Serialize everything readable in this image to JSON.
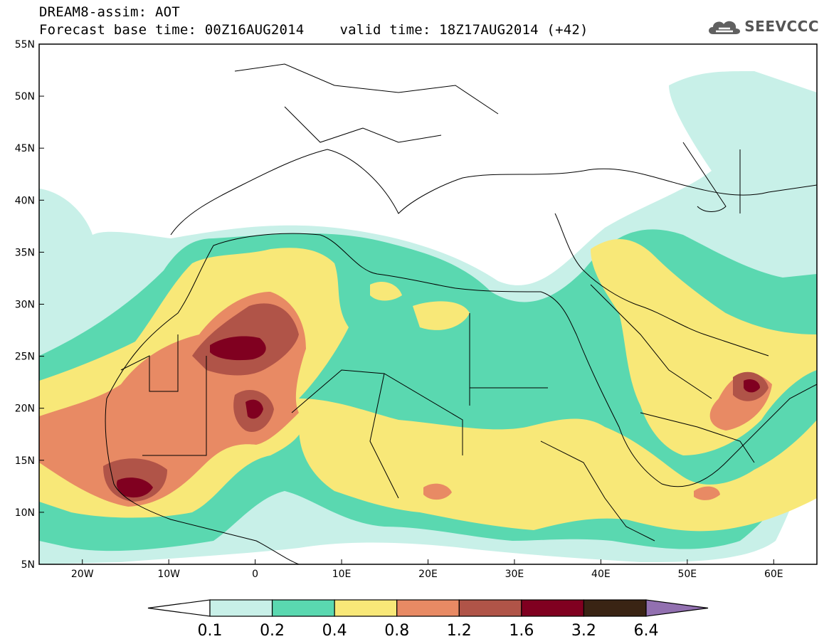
{
  "header": {
    "title": "DREAM8-assim: AOT",
    "base_time": "Forecast base time: 00Z16AUG2014",
    "valid_time": "valid time: 18Z17AUG2014 (+42)"
  },
  "logo": {
    "text": "SEEVCCC",
    "icon": "cloud-icon"
  },
  "map": {
    "lat_range": [
      5,
      55
    ],
    "lon_range": [
      -25,
      65
    ],
    "lat_ticks": [
      "5N",
      "10N",
      "15N",
      "20N",
      "25N",
      "30N",
      "35N",
      "40N",
      "45N",
      "50N",
      "55N"
    ],
    "lon_ticks": [
      "20W",
      "10W",
      "0",
      "10E",
      "20E",
      "30E",
      "40E",
      "50E",
      "60E"
    ]
  },
  "colorbar": {
    "labels": [
      "0.1",
      "0.2",
      "0.4",
      "0.8",
      "1.2",
      "1.6",
      "3.2",
      "6.4"
    ],
    "colors": [
      "#c8f0e8",
      "#5ad8b0",
      "#f8e878",
      "#e88a64",
      "#b05448",
      "#800020",
      "#3a2414",
      "#9270b0"
    ]
  }
}
